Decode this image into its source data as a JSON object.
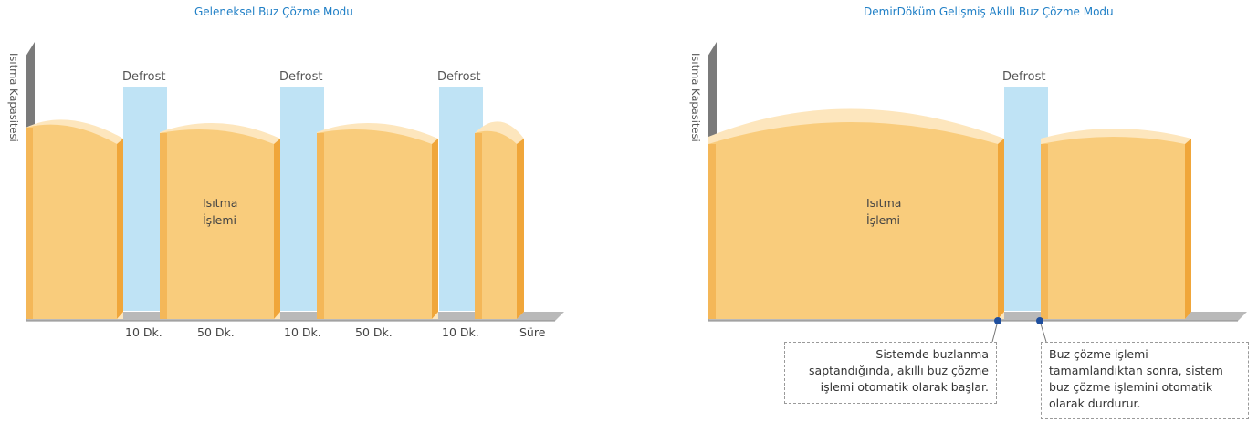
{
  "colors": {
    "heating_fill": "#f9cc7c",
    "heating_edge": "#f0a63a",
    "heating_top": "#fde6bd",
    "defrost_fill": "#bfe3f5",
    "axis_gray": "#b9b9b9",
    "axis_dark": "#7a7a7a",
    "title_blue": "#1f7fc6",
    "marker_blue": "#1f4f9e"
  },
  "left": {
    "title": "Geleneksel Buz Çözme Modu",
    "ylabel": "Isıtma Kapasitesi",
    "process_line1": "Isıtma",
    "process_line2": "İşlemi",
    "defrost_labels": [
      "Defrost",
      "Defrost",
      "Defrost"
    ],
    "time_labels": [
      "10 Dk.",
      "50 Dk.",
      "10 Dk.",
      "50 Dk.",
      "10 Dk."
    ],
    "x_axis_label": "Süre"
  },
  "right": {
    "title": "DemirDöküm Gelişmiş Akıllı Buz Çözme Modu",
    "ylabel": "Isıtma Kapasitesi",
    "process_line1": "Isıtma",
    "process_line2": "İşlemi",
    "defrost_label": "Defrost",
    "note_start": "Sistemde buzlanma saptandığında, akıllı buz çözme işlemi otomatik olarak başlar.",
    "note_end": "Buz çözme işlemi tamamlandıktan sonra, sistem buz çözme işlemini otomatik olarak durdurur."
  }
}
